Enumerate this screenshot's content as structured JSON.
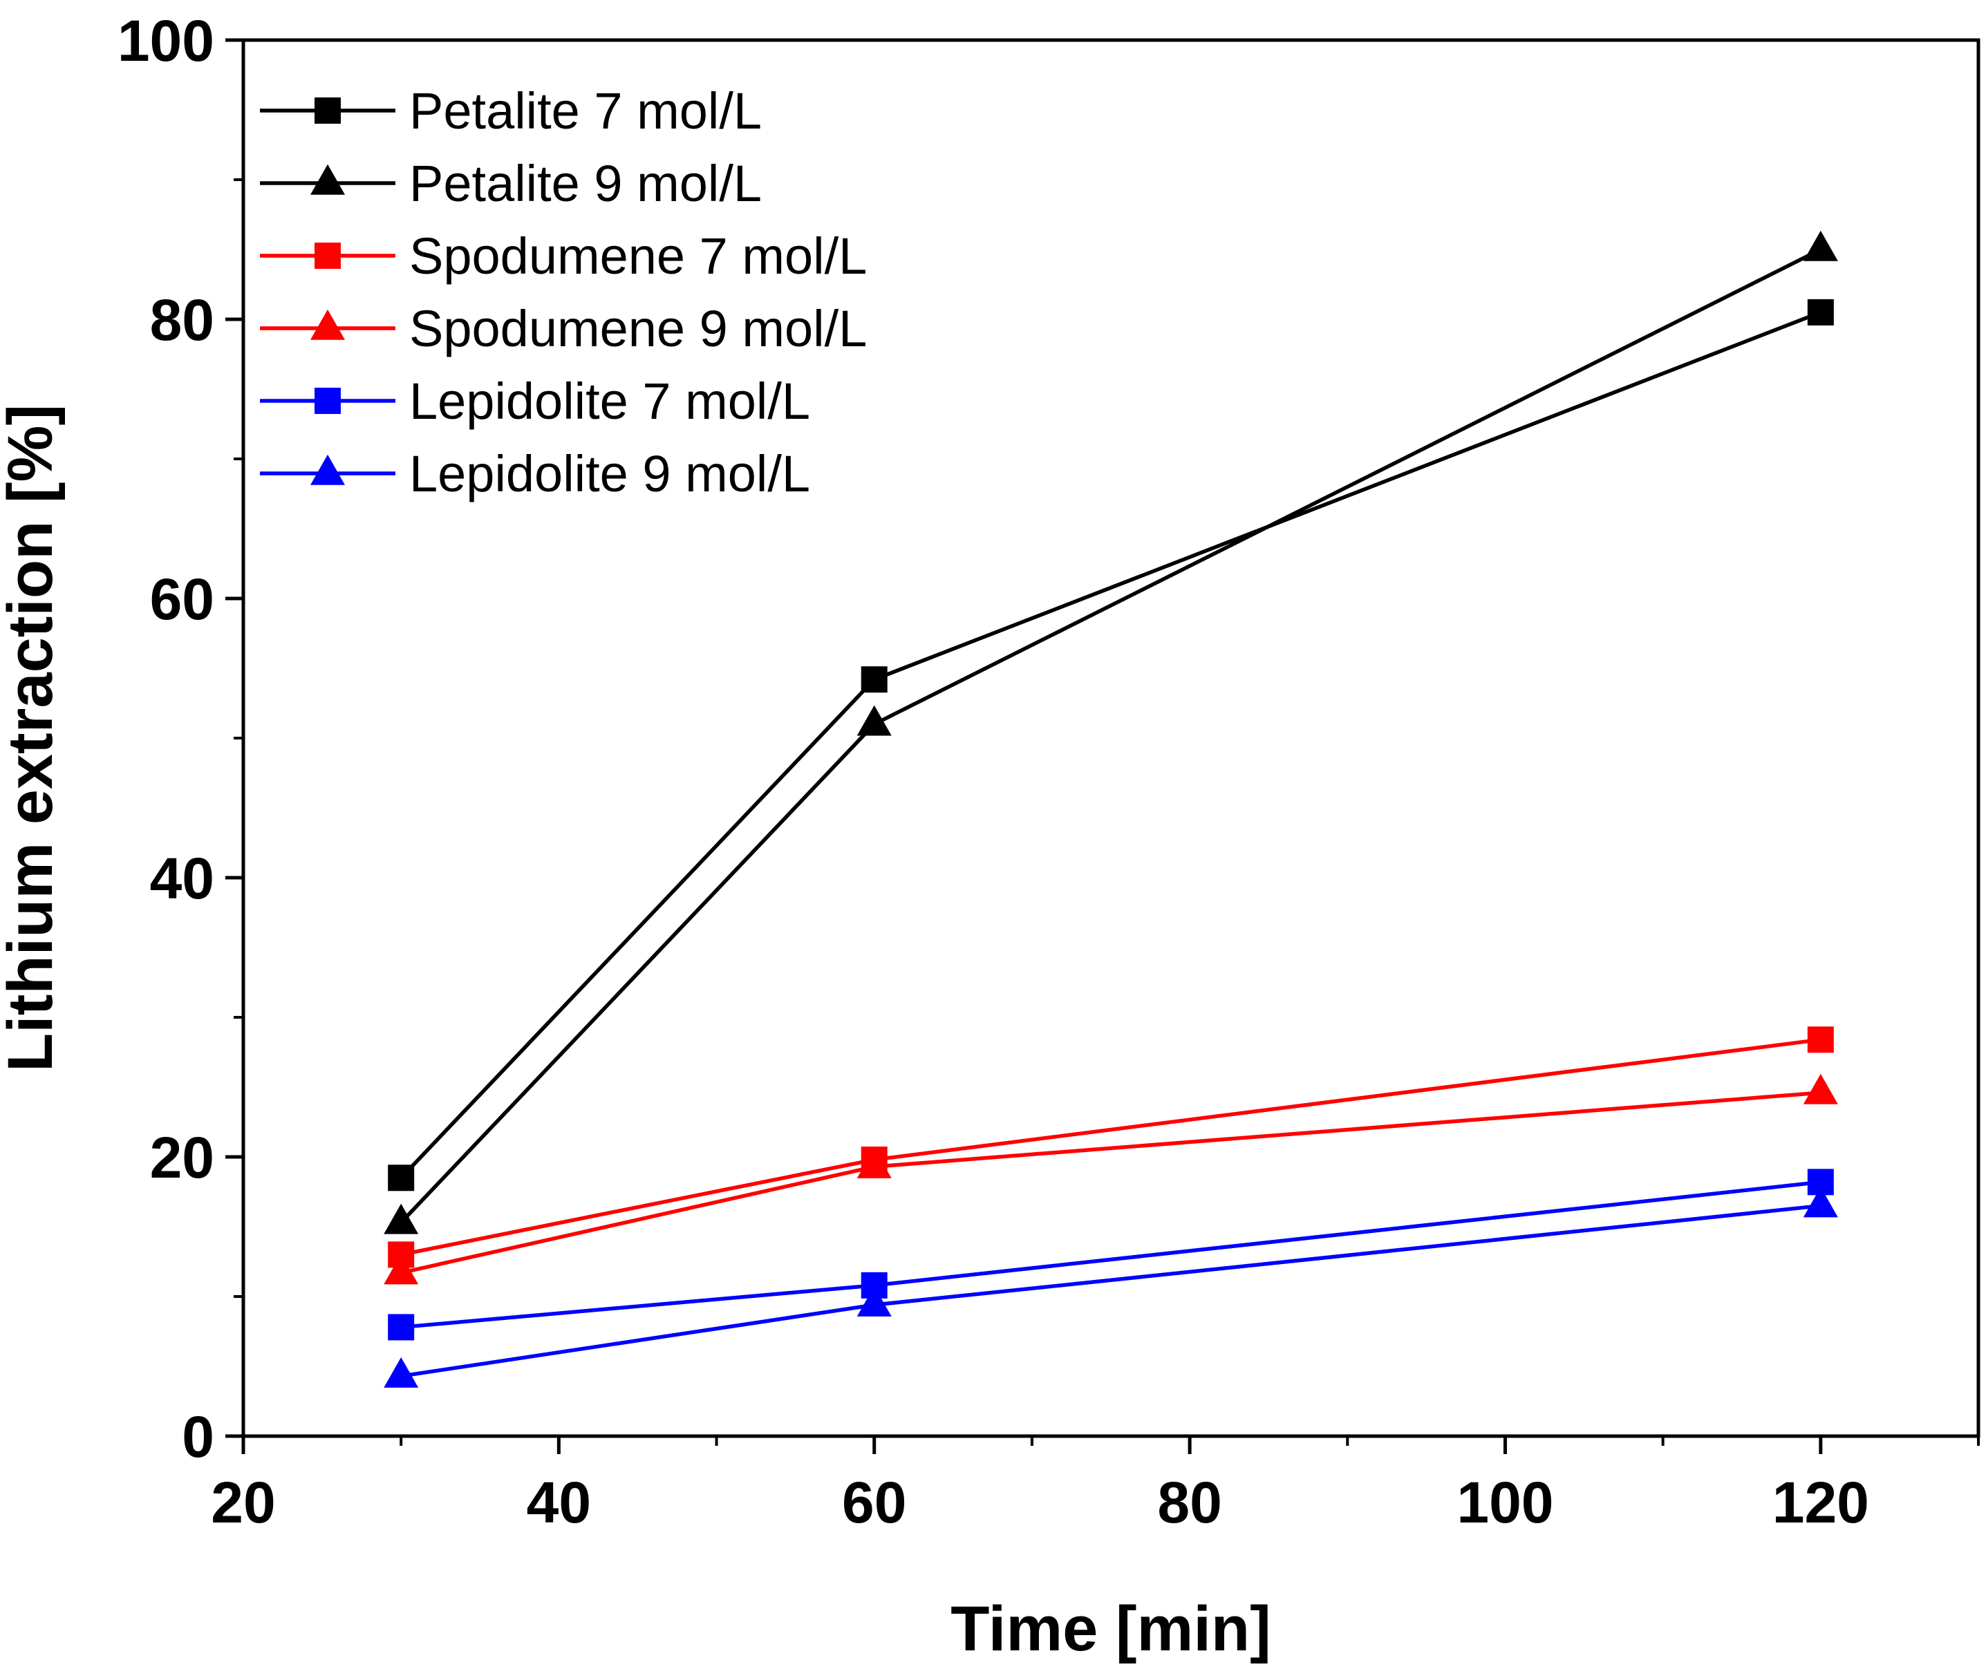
{
  "chart_data": {
    "type": "line",
    "title": "",
    "xlabel": "Time [min]",
    "ylabel": "Lithium extraction [%]",
    "xlim": [
      20,
      130
    ],
    "ylim": [
      0,
      100
    ],
    "xticks": [
      20,
      40,
      60,
      80,
      100,
      120
    ],
    "yticks": [
      0,
      20,
      40,
      60,
      80,
      100
    ],
    "x_minor_step": 10,
    "y_minor_step": 10,
    "grid": false,
    "legend_position": "top-left",
    "x": [
      30,
      60,
      120
    ],
    "series": [
      {
        "name": "Petalite 7 mol/L",
        "values": [
          18.5,
          54.2,
          80.5
        ],
        "color": "#000000",
        "marker": "square"
      },
      {
        "name": "Petalite 9 mol/L",
        "values": [
          15.3,
          51.0,
          85.0
        ],
        "color": "#000000",
        "marker": "triangle"
      },
      {
        "name": "Spodumene 7 mol/L",
        "values": [
          13.0,
          19.8,
          28.4
        ],
        "color": "#ff0000",
        "marker": "square"
      },
      {
        "name": "Spodumene 9 mol/L",
        "values": [
          11.7,
          19.3,
          24.6
        ],
        "color": "#ff0000",
        "marker": "triangle"
      },
      {
        "name": "Lepidolite 7 mol/L",
        "values": [
          7.8,
          10.8,
          18.2
        ],
        "color": "#0000ff",
        "marker": "square"
      },
      {
        "name": "Lepidolite 9 mol/L",
        "values": [
          4.3,
          9.4,
          16.5
        ],
        "color": "#0000ff",
        "marker": "triangle"
      }
    ]
  }
}
